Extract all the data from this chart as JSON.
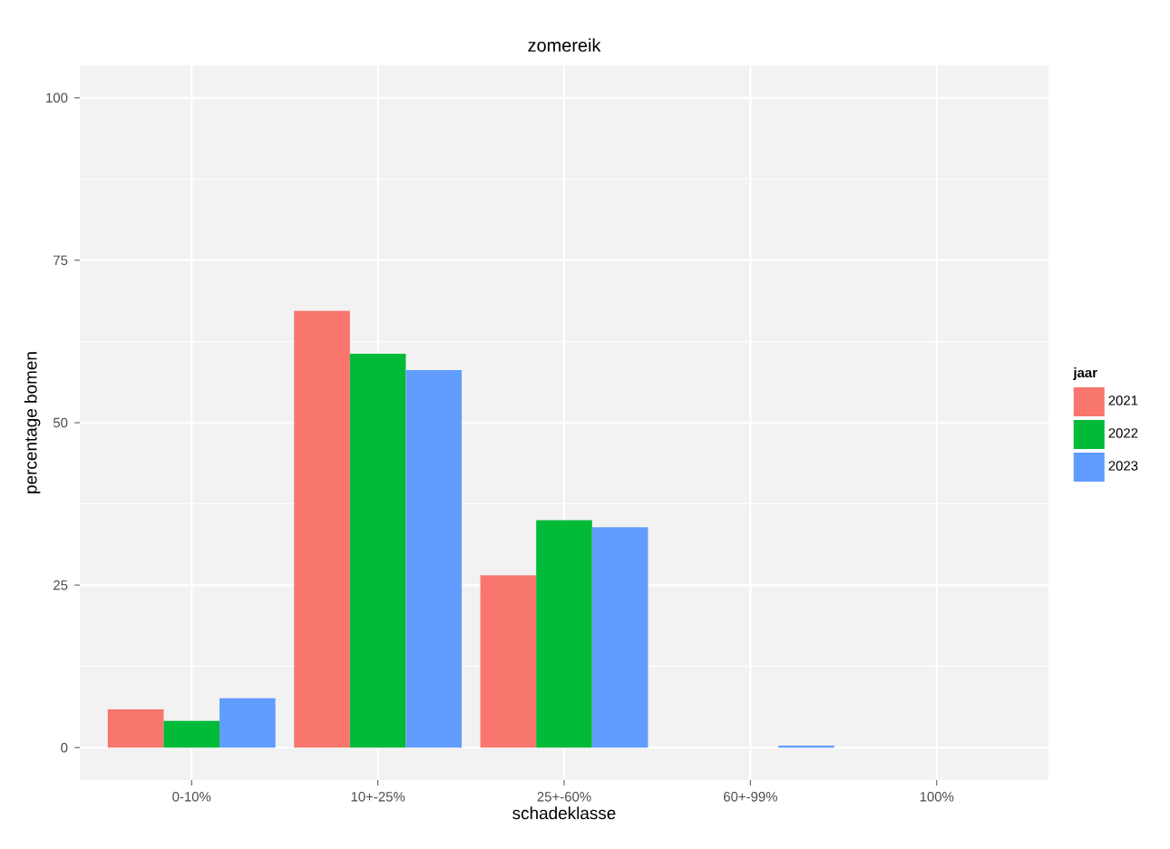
{
  "chart_data": {
    "type": "bar",
    "title": "zomereik",
    "xlabel": "schadeklasse",
    "ylabel": "percentage bomen",
    "legend_title": "jaar",
    "categories": [
      "0-10%",
      "10+-25%",
      "25+-60%",
      "60+-99%",
      "100%"
    ],
    "series": [
      {
        "name": "2021",
        "color": "#f8766d",
        "values": [
          5.9,
          67.2,
          26.5,
          null,
          null
        ]
      },
      {
        "name": "2022",
        "color": "#00ba38",
        "values": [
          4.1,
          60.6,
          35.0,
          null,
          null
        ]
      },
      {
        "name": "2023",
        "color": "#619cff",
        "values": [
          7.6,
          58.1,
          33.9,
          0.3,
          null
        ]
      }
    ],
    "ylim": [
      -5,
      105
    ],
    "yticks": [
      0,
      25,
      50,
      75,
      100
    ],
    "grid": true,
    "legend": "right"
  }
}
